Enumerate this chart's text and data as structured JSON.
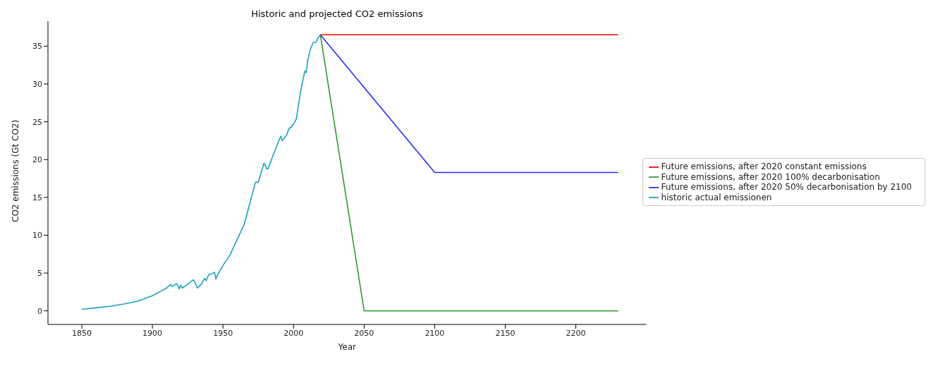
{
  "chart_data": {
    "type": "line",
    "title": "Historic and projected CO2 emissions",
    "xlabel": "Year",
    "ylabel": "CO2 emissions (Gt CO2)",
    "xlim": [
      1826,
      2250
    ],
    "xticks": [
      1850,
      1900,
      1950,
      2000,
      2050,
      2100,
      2150,
      2200
    ],
    "ylim": [
      -1.8,
      38.3
    ],
    "yticks": [
      0,
      5,
      10,
      15,
      20,
      25,
      30,
      35
    ],
    "legend": "right",
    "grid": false,
    "marker": "none",
    "line_style": "solid",
    "series": [
      {
        "name": "Future emissions, after 2020 constant emissions",
        "color": "#ff0000",
        "x": [
          2019,
          2230
        ],
        "values": [
          36.5,
          36.5
        ]
      },
      {
        "name": "Future emissions, after 2020 100% decarbonisation",
        "color": "#2e9a2e",
        "x": [
          2019,
          2050,
          2230
        ],
        "values": [
          36.5,
          0,
          0
        ]
      },
      {
        "name": "Future emissions, after 2020 50% decarbonisation by 2100",
        "color": "#2a2aff",
        "x": [
          2019,
          2100,
          2230
        ],
        "values": [
          36.5,
          18.3,
          18.3
        ]
      },
      {
        "name": "historic actual emissionen",
        "color": "#1ba1c1",
        "x": [
          1850,
          1860,
          1870,
          1880,
          1890,
          1900,
          1905,
          1910,
          1913,
          1914,
          1917,
          1918,
          1919,
          1920,
          1921,
          1925,
          1929,
          1930,
          1932,
          1935,
          1937,
          1938,
          1940,
          1942,
          1944,
          1945,
          1946,
          1950,
          1955,
          1960,
          1965,
          1970,
          1973,
          1974,
          1975,
          1979,
          1980,
          1981,
          1982,
          1985,
          1990,
          1991,
          1992,
          1995,
          1997,
          1998,
          2000,
          2002,
          2005,
          2008,
          2009,
          2010,
          2012,
          2014,
          2016,
          2017,
          2019
        ],
        "values": [
          0.2,
          0.4,
          0.6,
          0.9,
          1.3,
          2.0,
          2.5,
          3.0,
          3.5,
          3.2,
          3.6,
          3.4,
          2.9,
          3.4,
          3.0,
          3.5,
          4.1,
          3.8,
          3.0,
          3.6,
          4.3,
          4.0,
          4.8,
          4.9,
          5.1,
          4.2,
          4.7,
          6.0,
          7.4,
          9.4,
          11.4,
          14.9,
          17.0,
          17.0,
          17.0,
          19.5,
          19.2,
          18.8,
          18.8,
          20.3,
          22.7,
          23.1,
          22.5,
          23.2,
          24.2,
          24.2,
          24.7,
          25.4,
          29.0,
          31.7,
          31.5,
          33.1,
          34.6,
          35.5,
          35.5,
          36.0,
          36.5
        ]
      }
    ]
  }
}
